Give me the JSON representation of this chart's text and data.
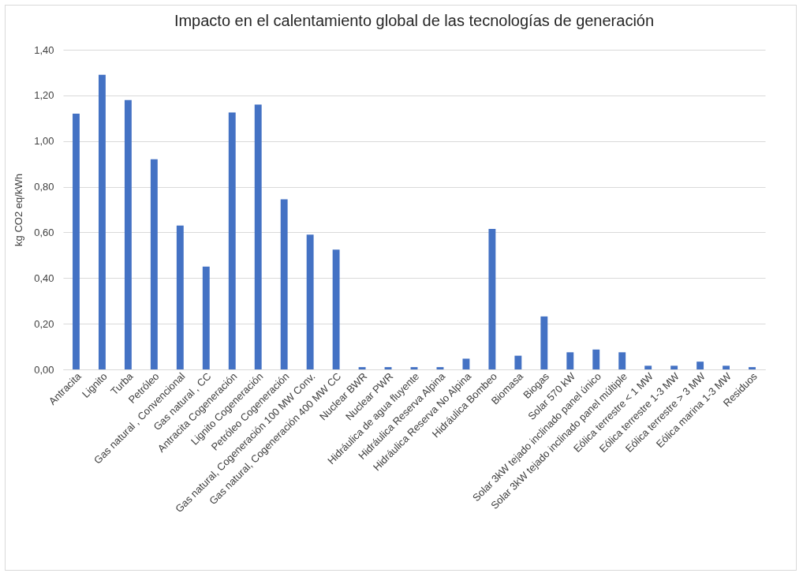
{
  "chart_data": {
    "type": "bar",
    "title": "Impacto en el calentamiento global de las tecnologías de generación",
    "ylabel": "kg CO2 eq/kWh",
    "categories": [
      "Antracita",
      "Lignito",
      "Turba",
      "Petróleo",
      "Gas natural , Convencional",
      "Gas natural , CC",
      "Antracita Cogeneración",
      "Lignito Cogeneración",
      "Petróleo Cogeneración",
      "Gas natural, Cogeneración 100 MW Conv.",
      "Gas natural, Cogeneración 400 MW CC",
      "Nuclear BWR",
      "Nuclear PWR",
      "Hidráulica de agua fluyente",
      "Hidráulica Reserva Alpina",
      "Hidráulica Reserva No Alpina",
      "Hidráulica Bombeo",
      "Biomasa",
      "Biogas",
      "Solar 570 kW",
      "Solar 3kW tejado inclinado panel único",
      "Solar 3kW tejado inclinado panel múltiple",
      "Eólica terrestre < 1 MW",
      "Eólica terrestre 1-3 MW",
      "Eólica terrestre > 3 MW",
      "Eólica marina 1-3 MW",
      "Residuos"
    ],
    "values": [
      1.12,
      1.29,
      1.18,
      0.92,
      0.63,
      0.45,
      1.125,
      1.16,
      0.745,
      0.59,
      0.525,
      0.01,
      0.01,
      0.01,
      0.01,
      0.047,
      0.615,
      0.06,
      0.232,
      0.075,
      0.087,
      0.075,
      0.016,
      0.016,
      0.034,
      0.016,
      0.01
    ],
    "color": "#4472c4",
    "ylim": [
      0,
      1.4
    ],
    "yticks": [
      {
        "value": 0,
        "label": "0,00"
      },
      {
        "value": 0.2,
        "label": "0,20"
      },
      {
        "value": 0.4,
        "label": "0,40"
      },
      {
        "value": 0.6,
        "label": "0,60"
      },
      {
        "value": 0.8,
        "label": "0,80"
      },
      {
        "value": 1,
        "label": "1,00"
      },
      {
        "value": 1.2,
        "label": "1,20"
      },
      {
        "value": 1.4,
        "label": "1,40"
      }
    ],
    "grid": "y"
  }
}
